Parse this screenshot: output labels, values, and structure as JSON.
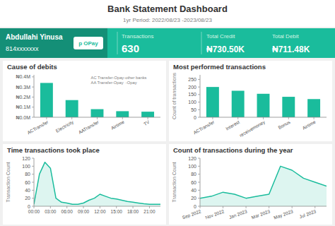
{
  "title": "Bank Statement Dashboard",
  "subtitle": "1yr Period: 2022/08/23 -2023/08/23",
  "annotations": [
    "Abdullahi Yinusa",
    "814xxxxxxx",
    "p OPay",
    "Transactions",
    "630",
    "Total Credit",
    "₦730.50K",
    "Total Debit",
    "₦711.48K"
  ],
  "chart_data": [
    {
      "type": "bar",
      "title": "Cause of debits",
      "categories": [
        "ACTransfer",
        "Electricity",
        "AATransfer",
        "Airtime",
        "TV"
      ],
      "values": [
        0.34,
        0.17,
        0.08,
        0.06,
        0.055
      ],
      "color": "#1ABC9C",
      "ylim": [
        0,
        0.42
      ],
      "yticks": [
        {
          "value": 0,
          "label": "₦0.0M"
        },
        {
          "value": 0.1,
          "label": "₦0.1M"
        },
        {
          "value": 0.2,
          "label": "₦0.2M"
        },
        {
          "value": 0.3,
          "label": "₦0.3M"
        },
        {
          "value": 0.4,
          "label": "₦0.4M"
        }
      ],
      "annotations": [
        "AC Transfer-Opay-other banks",
        "AA Transfer-Opay  -Opay"
      ]
    },
    {
      "type": "bar",
      "title": "Most performed transactions",
      "categories": [
        "ACTransfer",
        "Interest",
        "receivemoney",
        "Bonus",
        "Airtime"
      ],
      "values": [
        200,
        175,
        155,
        135,
        120
      ],
      "color": "#1ABC9C",
      "ylim": [
        0,
        280
      ],
      "yticks": [
        0,
        50,
        100,
        150,
        200,
        250
      ],
      "ylabel": "Count of transactions"
    },
    {
      "type": "area",
      "title": "Time transactions took place",
      "x": [
        0,
        1,
        2,
        3,
        4,
        5,
        6,
        7,
        8,
        9,
        10,
        11,
        12,
        13,
        14,
        15,
        16,
        17,
        18,
        19,
        20,
        21,
        22,
        23
      ],
      "values": [
        5,
        80,
        110,
        95,
        20,
        10,
        8,
        5,
        5,
        8,
        15,
        20,
        30,
        25,
        20,
        18,
        15,
        12,
        10,
        8,
        6,
        5,
        5,
        5
      ],
      "color": "#1ABC9C",
      "xlim": [
        0,
        23
      ],
      "xticks": [
        {
          "value": 0,
          "label": "00:00"
        },
        {
          "value": 3,
          "label": "03:00"
        },
        {
          "value": 6,
          "label": "06:00"
        },
        {
          "value": 9,
          "label": "09:00"
        },
        {
          "value": 12,
          "label": "12:00"
        },
        {
          "value": 15,
          "label": "15:00"
        },
        {
          "value": 18,
          "label": "18:00"
        },
        {
          "value": 21,
          "label": "21:00"
        }
      ],
      "ylim": [
        0,
        120
      ],
      "yticks": [
        0,
        20,
        40,
        60,
        80,
        100,
        120
      ],
      "ylabel": "Transaction Count"
    },
    {
      "type": "area",
      "title": "Count of transactions during the year",
      "x": [
        0,
        1,
        2,
        3,
        4,
        5,
        6,
        7,
        8,
        9,
        10,
        11
      ],
      "values": [
        20,
        25,
        35,
        30,
        20,
        25,
        30,
        100,
        90,
        70,
        60,
        50
      ],
      "color": "#1ABC9C",
      "xlim": [
        0,
        11
      ],
      "xticks": [
        {
          "value": 0,
          "label": "Sep 2022"
        },
        {
          "value": 2,
          "label": "Nov 2022"
        },
        {
          "value": 4,
          "label": "Jan 2023"
        },
        {
          "value": 6,
          "label": "Mar 2023"
        },
        {
          "value": 8,
          "label": "May 2023"
        },
        {
          "value": 10,
          "label": "Jul 2023"
        }
      ],
      "ylim": [
        0,
        120
      ],
      "yticks": [
        0,
        20,
        40,
        60,
        80,
        100,
        120
      ],
      "ylabel": "Transaction Count"
    }
  ]
}
